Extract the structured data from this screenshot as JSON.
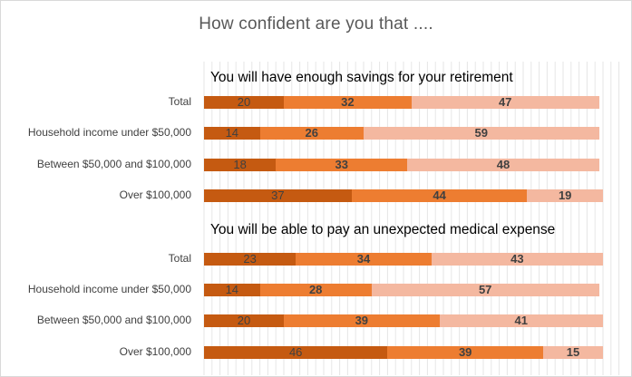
{
  "chart_data": {
    "type": "bar",
    "orientation": "horizontal",
    "stacked": true,
    "title": "How confident are you that ....",
    "series_colors": [
      "#C55A11",
      "#ED7D31",
      "#F4B8A0"
    ],
    "value_label_colors": [
      "#404040",
      "#404040",
      "#404040"
    ],
    "grid": true,
    "xlim": [
      0,
      100
    ],
    "panels": [
      {
        "title": "You will have enough savings for your retirement",
        "categories": [
          "Total",
          "Household income under $50,000",
          "Between $50,000 and $100,000",
          "Over $100,000"
        ],
        "series": [
          {
            "values": [
              20,
              14,
              18,
              37
            ]
          },
          {
            "values": [
              32,
              26,
              33,
              44
            ]
          },
          {
            "values": [
              47,
              59,
              48,
              19
            ]
          }
        ]
      },
      {
        "title": "You will be able to pay an unexpected medical expense",
        "categories": [
          "Total",
          "Household income under $50,000",
          "Between $50,000 and $100,000",
          "Over $100,000"
        ],
        "series": [
          {
            "values": [
              23,
              14,
              20,
              46
            ]
          },
          {
            "values": [
              34,
              28,
              39,
              39
            ]
          },
          {
            "values": [
              43,
              57,
              41,
              15
            ]
          }
        ]
      }
    ]
  }
}
